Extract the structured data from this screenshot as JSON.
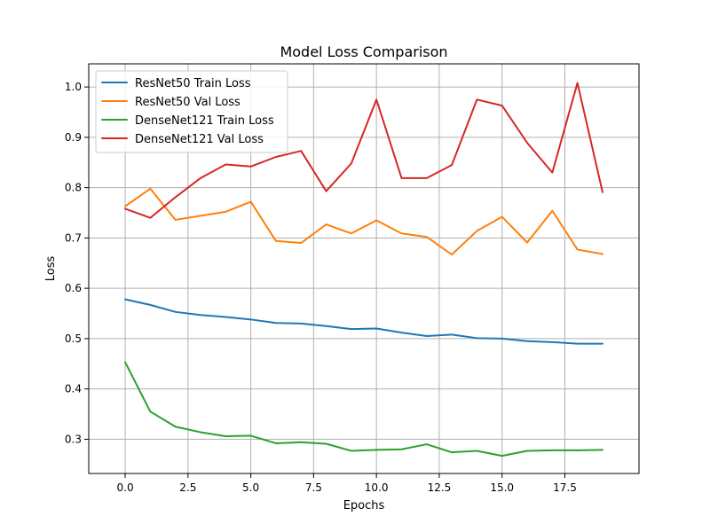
{
  "chart_data": {
    "type": "line",
    "title": "Model Loss Comparison",
    "xlabel": "Epochs",
    "ylabel": "Loss",
    "x": [
      0,
      1,
      2,
      3,
      4,
      5,
      6,
      7,
      8,
      9,
      10,
      11,
      12,
      13,
      14,
      15,
      16,
      17,
      18,
      19
    ],
    "xlim": [
      -1.45,
      20.45
    ],
    "ylim": [
      0.232,
      1.046
    ],
    "xticks": [
      0.0,
      2.5,
      5.0,
      7.5,
      10.0,
      12.5,
      15.0,
      17.5
    ],
    "xtick_labels": [
      "0.0",
      "2.5",
      "5.0",
      "7.5",
      "10.0",
      "12.5",
      "15.0",
      "17.5"
    ],
    "yticks": [
      0.3,
      0.4,
      0.5,
      0.6,
      0.7,
      0.8,
      0.9,
      1.0
    ],
    "ytick_labels": [
      "0.3",
      "0.4",
      "0.5",
      "0.6",
      "0.7",
      "0.8",
      "0.9",
      "1.0"
    ],
    "grid": true,
    "legend_position": "top-left",
    "series": [
      {
        "name": "ResNet50 Train Loss",
        "color": "#1f77b4",
        "values": [
          0.578,
          0.567,
          0.553,
          0.547,
          0.543,
          0.538,
          0.531,
          0.53,
          0.525,
          0.519,
          0.52,
          0.512,
          0.505,
          0.508,
          0.501,
          0.5,
          0.495,
          0.493,
          0.49,
          0.49
        ]
      },
      {
        "name": "ResNet50 Val Loss",
        "color": "#ff7f0e",
        "values": [
          0.763,
          0.798,
          0.736,
          0.744,
          0.752,
          0.772,
          0.694,
          0.69,
          0.727,
          0.709,
          0.735,
          0.709,
          0.702,
          0.667,
          0.714,
          0.742,
          0.691,
          0.754,
          0.677,
          0.668
        ]
      },
      {
        "name": "DenseNet121 Train Loss",
        "color": "#2ca02c",
        "values": [
          0.453,
          0.355,
          0.325,
          0.314,
          0.306,
          0.307,
          0.292,
          0.294,
          0.291,
          0.277,
          0.279,
          0.28,
          0.29,
          0.274,
          0.277,
          0.267,
          0.277,
          0.278,
          0.278,
          0.279
        ]
      },
      {
        "name": "DenseNet121 Val Loss",
        "color": "#d62728",
        "values": [
          0.758,
          0.74,
          0.781,
          0.819,
          0.846,
          0.842,
          0.861,
          0.873,
          0.793,
          0.848,
          0.975,
          0.819,
          0.819,
          0.845,
          0.975,
          0.963,
          0.889,
          0.83,
          1.008,
          0.791
        ]
      }
    ]
  }
}
